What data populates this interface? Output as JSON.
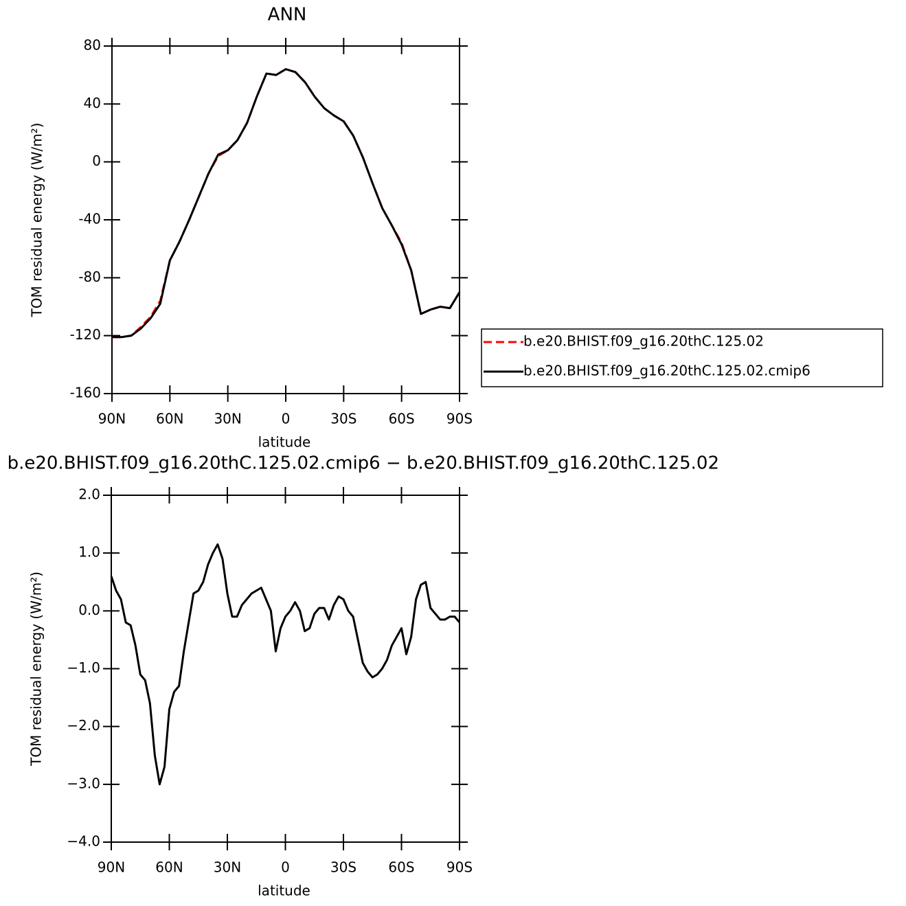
{
  "chart_data": [
    {
      "type": "line",
      "title": "ANN",
      "x_label": "latitude",
      "y_label": "TOM residual energy (W/m²)",
      "legend": "right",
      "x": [
        90,
        85,
        80,
        75,
        70,
        65,
        60,
        55,
        50,
        45,
        40,
        35,
        30,
        25,
        20,
        15,
        10,
        5,
        0,
        -5,
        -10,
        -15,
        -20,
        -25,
        -30,
        -35,
        -40,
        -45,
        -50,
        -55,
        -60,
        -65,
        -70,
        -75,
        -80,
        -85,
        -90
      ],
      "series": [
        {
          "name": "b.e20.BHIST.f09_g16.20thC.125.02",
          "color": "#ff0000",
          "line_style": "dashed",
          "values": [
            -121,
            -121,
            -120,
            -114,
            -107,
            -96,
            -68,
            -55,
            -40,
            -24,
            -8,
            4,
            8,
            15,
            27,
            45,
            61,
            60,
            64,
            62,
            55,
            45,
            37,
            32,
            28,
            18,
            3,
            -15,
            -32,
            -44,
            -56,
            -75,
            -105,
            -102,
            -100,
            -101,
            -90
          ]
        },
        {
          "name": "b.e20.BHIST.f09_g16.20thC.125.02.cmip6",
          "color": "#000000",
          "line_style": "solid",
          "values": [
            -121,
            -121,
            -120,
            -115,
            -108,
            -98,
            -68,
            -55,
            -40,
            -24,
            -8,
            5,
            8,
            15,
            27,
            45,
            61,
            60,
            64,
            62,
            55,
            45,
            37,
            32,
            28,
            18,
            3,
            -15,
            -32,
            -44,
            -57,
            -75,
            -105,
            -102,
            -100,
            -101,
            -90
          ]
        }
      ],
      "xlim": [
        90,
        -90
      ],
      "xticks": [
        {
          "value": 90,
          "label": "90N"
        },
        {
          "value": 60,
          "label": "60N"
        },
        {
          "value": 30,
          "label": "30N"
        },
        0,
        {
          "value": -30,
          "label": "30S"
        },
        {
          "value": -60,
          "label": "60S"
        },
        {
          "value": -90,
          "label": "90S"
        }
      ],
      "ylim": [
        -160,
        80
      ],
      "yticks": [
        80,
        40,
        0,
        -40,
        -80,
        -120,
        -160
      ]
    },
    {
      "type": "line",
      "title": "b.e20.BHIST.f09_g16.20thC.125.02.cmip6 − b.e20.BHIST.f09_g16.20thC.125.02",
      "x_label": "latitude",
      "y_label": "TOM residual energy (W/m²)",
      "x": [
        90,
        87.5,
        85,
        82.5,
        80,
        77.5,
        75,
        72.5,
        70,
        67.5,
        65,
        62.5,
        60,
        57.5,
        55,
        52.5,
        50,
        47.5,
        45,
        42.5,
        40,
        37.5,
        35,
        32.5,
        30,
        27.5,
        25,
        22.5,
        20,
        17.5,
        15,
        12.5,
        10,
        7.5,
        5,
        2.5,
        0,
        -2.5,
        -5,
        -7.5,
        -10,
        -12.5,
        -15,
        -17.5,
        -20,
        -22.5,
        -25,
        -27.5,
        -30,
        -32.5,
        -35,
        -37.5,
        -40,
        -42.5,
        -45,
        -47.5,
        -50,
        -52.5,
        -55,
        -57.5,
        -60,
        -62.5,
        -65,
        -67.5,
        -70,
        -72.5,
        -75,
        -77.5,
        -80,
        -82.5,
        -85,
        -87.5,
        -90
      ],
      "series": [
        {
          "color": "#000000",
          "line_style": "solid",
          "values": [
            0.6,
            0.35,
            0.2,
            -0.2,
            -0.25,
            -0.6,
            -1.1,
            -1.2,
            -1.6,
            -2.5,
            -3.0,
            -2.7,
            -1.7,
            -1.4,
            -1.3,
            -0.7,
            -0.2,
            0.3,
            0.35,
            0.5,
            0.8,
            1.0,
            1.15,
            0.9,
            0.3,
            -0.1,
            -0.1,
            0.1,
            0.2,
            0.3,
            0.35,
            0.4,
            0.2,
            0.0,
            -0.7,
            -0.3,
            -0.1,
            0.0,
            0.15,
            0.0,
            -0.35,
            -0.3,
            -0.05,
            0.05,
            0.05,
            -0.15,
            0.1,
            0.25,
            0.2,
            0.0,
            -0.1,
            -0.5,
            -0.9,
            -1.05,
            -1.15,
            -1.1,
            -1.0,
            -0.85,
            -0.6,
            -0.45,
            -0.3,
            -0.75,
            -0.45,
            0.2,
            0.45,
            0.5,
            0.05,
            -0.05,
            -0.15,
            -0.15,
            -0.1,
            -0.1,
            -0.2
          ]
        }
      ],
      "xlim": [
        90,
        -90
      ],
      "xticks": [
        {
          "value": 90,
          "label": "90N"
        },
        {
          "value": 60,
          "label": "60N"
        },
        {
          "value": 30,
          "label": "30N"
        },
        0,
        {
          "value": -30,
          "label": "30S"
        },
        {
          "value": -60,
          "label": "60S"
        },
        {
          "value": -90,
          "label": "90S"
        }
      ],
      "ylim": [
        -4,
        2
      ],
      "yticks": [
        {
          "value": 2,
          "label": "2.0"
        },
        {
          "value": 1,
          "label": "1.0"
        },
        {
          "value": 0,
          "label": "0.0"
        },
        {
          "value": -1,
          "label": "−1.0"
        },
        {
          "value": -2,
          "label": "−2.0"
        },
        {
          "value": -3,
          "label": "−3.0"
        },
        {
          "value": -4,
          "label": "−4.0"
        }
      ]
    }
  ]
}
